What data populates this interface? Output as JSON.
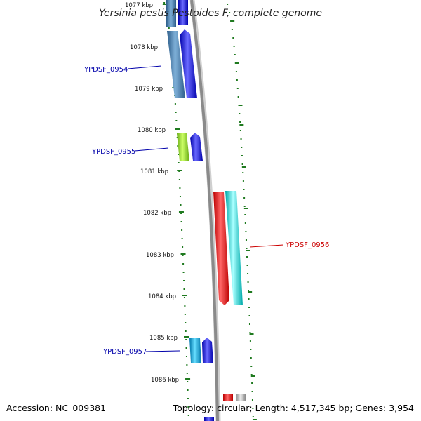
{
  "title": "Yersinia pestis Pestoides F, complete genome",
  "footer": {
    "accession": "Accession: NC_009381",
    "stats": "Topology: circular; Length: 4,517,345 bp; Genes: 3,954"
  },
  "colors": {
    "backbone": "#8a8a8a",
    "ticks": "#1f7a1f",
    "label_blue": "#0000aa",
    "label_red": "#cc0000"
  },
  "ticks": [
    {
      "label": "1077 kbp"
    },
    {
      "label": "1078 kbp"
    },
    {
      "label": "1079 kbp"
    },
    {
      "label": "1080 kbp"
    },
    {
      "label": "1081 kbp"
    },
    {
      "label": "1082 kbp"
    },
    {
      "label": "1083 kbp"
    },
    {
      "label": "1084 kbp"
    },
    {
      "label": "1085 kbp"
    },
    {
      "label": "1086 kbp"
    }
  ],
  "gene_labels": [
    {
      "name": "YPDSF_0954",
      "color": "#0000aa"
    },
    {
      "name": "YPDSF_0955",
      "color": "#0000aa"
    },
    {
      "name": "YPDSF_0956",
      "color": "#cc0000"
    },
    {
      "name": "YPDSF_0957",
      "color": "#0000aa"
    }
  ],
  "features": [
    {
      "name": "feature-0954-cds",
      "color": "#4a7fb0"
    },
    {
      "name": "feature-0954-gene",
      "color": "#0000dd"
    },
    {
      "name": "feature-0955-cds",
      "color": "#99dd22"
    },
    {
      "name": "feature-0955-gene",
      "color": "#0000dd"
    },
    {
      "name": "feature-0956-gene",
      "color": "#ee0000"
    },
    {
      "name": "feature-0956-cds",
      "color": "#00e5e5"
    },
    {
      "name": "feature-0957-cds",
      "color": "#11aadd"
    },
    {
      "name": "feature-0957-gene",
      "color": "#0000dd"
    }
  ]
}
